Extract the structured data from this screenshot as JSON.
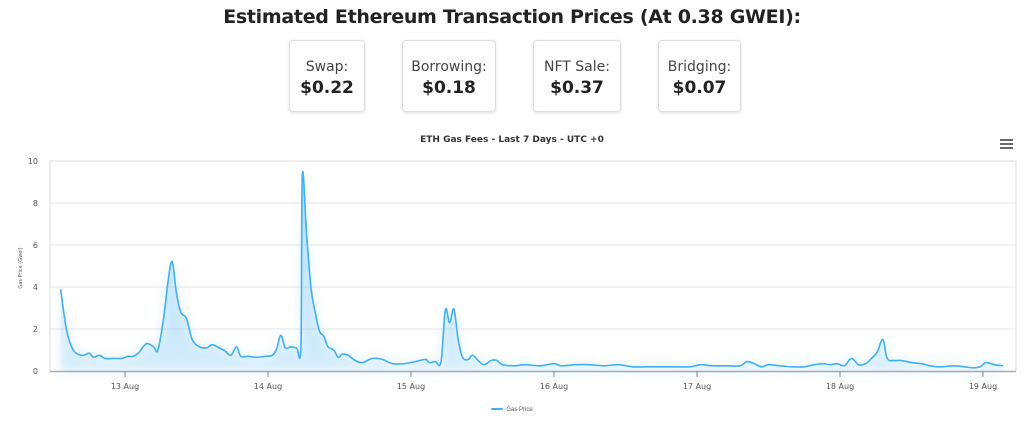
{
  "header": {
    "title": "Estimated Ethereum Transaction Prices (At 0.38 GWEI):"
  },
  "cards": [
    {
      "label": "Swap:",
      "value": "$0.22"
    },
    {
      "label": "Borrowing:",
      "value": "$0.18"
    },
    {
      "label": "NFT Sale:",
      "value": "$0.37"
    },
    {
      "label": "Bridging:",
      "value": "$0.07"
    }
  ],
  "colors": {
    "line": "#42aff0",
    "fill": "#42aff0",
    "grid": "#e6e6e6",
    "axis": "#aaaaaa"
  },
  "menu": {
    "icon": "hamburger-menu-icon"
  },
  "chart_data": {
    "type": "area",
    "title": "ETH Gas Fees - Last 7 Days - UTC +0",
    "xlabel": "",
    "ylabel": "Gas Price (Gwei)",
    "ylim": [
      0,
      10
    ],
    "yticks": [
      0,
      2,
      4,
      6,
      8,
      10
    ],
    "xticks": [
      {
        "label": "13 Aug",
        "day": 0
      },
      {
        "label": "14 Aug",
        "day": 1
      },
      {
        "label": "15 Aug",
        "day": 2
      },
      {
        "label": "16 Aug",
        "day": 3
      },
      {
        "label": "17 Aug",
        "day": 4
      },
      {
        "label": "18 Aug",
        "day": 5
      },
      {
        "label": "19 Aug",
        "day": 6
      }
    ],
    "xlim_days": [
      -0.52,
      6.25
    ],
    "x_unit": "days since 13 Aug 00:00 UTC",
    "grid": true,
    "legend": {
      "position": "bottom-center",
      "entries": [
        "Gas Price"
      ]
    },
    "series": [
      {
        "name": "Gas Price",
        "points": [
          [
            -0.45,
            3.9
          ],
          [
            -0.41,
            2.0
          ],
          [
            -0.37,
            1.1
          ],
          [
            -0.33,
            0.8
          ],
          [
            -0.29,
            0.75
          ],
          [
            -0.25,
            0.85
          ],
          [
            -0.22,
            0.65
          ],
          [
            -0.18,
            0.75
          ],
          [
            -0.14,
            0.6
          ],
          [
            -0.08,
            0.6
          ],
          [
            -0.02,
            0.6
          ],
          [
            0.02,
            0.7
          ],
          [
            0.06,
            0.7
          ],
          [
            0.1,
            0.9
          ],
          [
            0.15,
            1.3
          ],
          [
            0.2,
            1.15
          ],
          [
            0.23,
            1.0
          ],
          [
            0.27,
            2.5
          ],
          [
            0.3,
            4.2
          ],
          [
            0.33,
            5.2
          ],
          [
            0.36,
            3.7
          ],
          [
            0.39,
            2.8
          ],
          [
            0.43,
            2.5
          ],
          [
            0.47,
            1.5
          ],
          [
            0.52,
            1.15
          ],
          [
            0.57,
            1.1
          ],
          [
            0.61,
            1.25
          ],
          [
            0.66,
            1.1
          ],
          [
            0.7,
            0.95
          ],
          [
            0.74,
            0.75
          ],
          [
            0.78,
            1.15
          ],
          [
            0.81,
            0.7
          ],
          [
            0.86,
            0.7
          ],
          [
            0.92,
            0.65
          ],
          [
            0.98,
            0.7
          ],
          [
            1.03,
            0.75
          ],
          [
            1.06,
            1.05
          ],
          [
            1.09,
            1.7
          ],
          [
            1.12,
            1.1
          ],
          [
            1.16,
            1.15
          ],
          [
            1.2,
            1.1
          ],
          [
            1.23,
            1.1
          ],
          [
            1.24,
            9.3
          ],
          [
            1.27,
            6.5
          ],
          [
            1.3,
            4.0
          ],
          [
            1.33,
            2.8
          ],
          [
            1.36,
            1.9
          ],
          [
            1.39,
            1.65
          ],
          [
            1.42,
            1.15
          ],
          [
            1.46,
            1.0
          ],
          [
            1.49,
            0.65
          ],
          [
            1.52,
            0.8
          ],
          [
            1.56,
            0.75
          ],
          [
            1.61,
            0.5
          ],
          [
            1.66,
            0.4
          ],
          [
            1.73,
            0.6
          ],
          [
            1.8,
            0.55
          ],
          [
            1.87,
            0.35
          ],
          [
            1.95,
            0.35
          ],
          [
            2.03,
            0.45
          ],
          [
            2.1,
            0.55
          ],
          [
            2.13,
            0.4
          ],
          [
            2.17,
            0.45
          ],
          [
            2.21,
            0.45
          ],
          [
            2.24,
            2.9
          ],
          [
            2.27,
            2.3
          ],
          [
            2.3,
            2.95
          ],
          [
            2.33,
            1.5
          ],
          [
            2.36,
            0.65
          ],
          [
            2.4,
            0.55
          ],
          [
            2.43,
            0.75
          ],
          [
            2.47,
            0.5
          ],
          [
            2.51,
            0.3
          ],
          [
            2.56,
            0.5
          ],
          [
            2.6,
            0.5
          ],
          [
            2.64,
            0.3
          ],
          [
            2.72,
            0.25
          ],
          [
            2.8,
            0.3
          ],
          [
            2.9,
            0.25
          ],
          [
            3.0,
            0.35
          ],
          [
            3.05,
            0.25
          ],
          [
            3.15,
            0.3
          ],
          [
            3.25,
            0.3
          ],
          [
            3.35,
            0.25
          ],
          [
            3.45,
            0.3
          ],
          [
            3.55,
            0.2
          ],
          [
            3.65,
            0.2
          ],
          [
            3.75,
            0.2
          ],
          [
            3.85,
            0.2
          ],
          [
            3.95,
            0.2
          ],
          [
            4.03,
            0.3
          ],
          [
            4.1,
            0.25
          ],
          [
            4.2,
            0.25
          ],
          [
            4.3,
            0.25
          ],
          [
            4.35,
            0.45
          ],
          [
            4.4,
            0.35
          ],
          [
            4.45,
            0.2
          ],
          [
            4.5,
            0.3
          ],
          [
            4.58,
            0.25
          ],
          [
            4.66,
            0.2
          ],
          [
            4.75,
            0.2
          ],
          [
            4.82,
            0.3
          ],
          [
            4.88,
            0.35
          ],
          [
            4.93,
            0.3
          ],
          [
            4.98,
            0.35
          ],
          [
            5.03,
            0.25
          ],
          [
            5.08,
            0.6
          ],
          [
            5.13,
            0.3
          ],
          [
            5.18,
            0.35
          ],
          [
            5.22,
            0.6
          ],
          [
            5.26,
            0.9
          ],
          [
            5.3,
            1.5
          ],
          [
            5.33,
            0.6
          ],
          [
            5.38,
            0.5
          ],
          [
            5.43,
            0.5
          ],
          [
            5.5,
            0.4
          ],
          [
            5.57,
            0.35
          ],
          [
            5.63,
            0.25
          ],
          [
            5.7,
            0.2
          ],
          [
            5.8,
            0.25
          ],
          [
            5.87,
            0.2
          ],
          [
            5.93,
            0.15
          ],
          [
            5.98,
            0.2
          ],
          [
            6.02,
            0.4
          ],
          [
            6.08,
            0.3
          ],
          [
            6.14,
            0.25
          ]
        ]
      }
    ]
  }
}
